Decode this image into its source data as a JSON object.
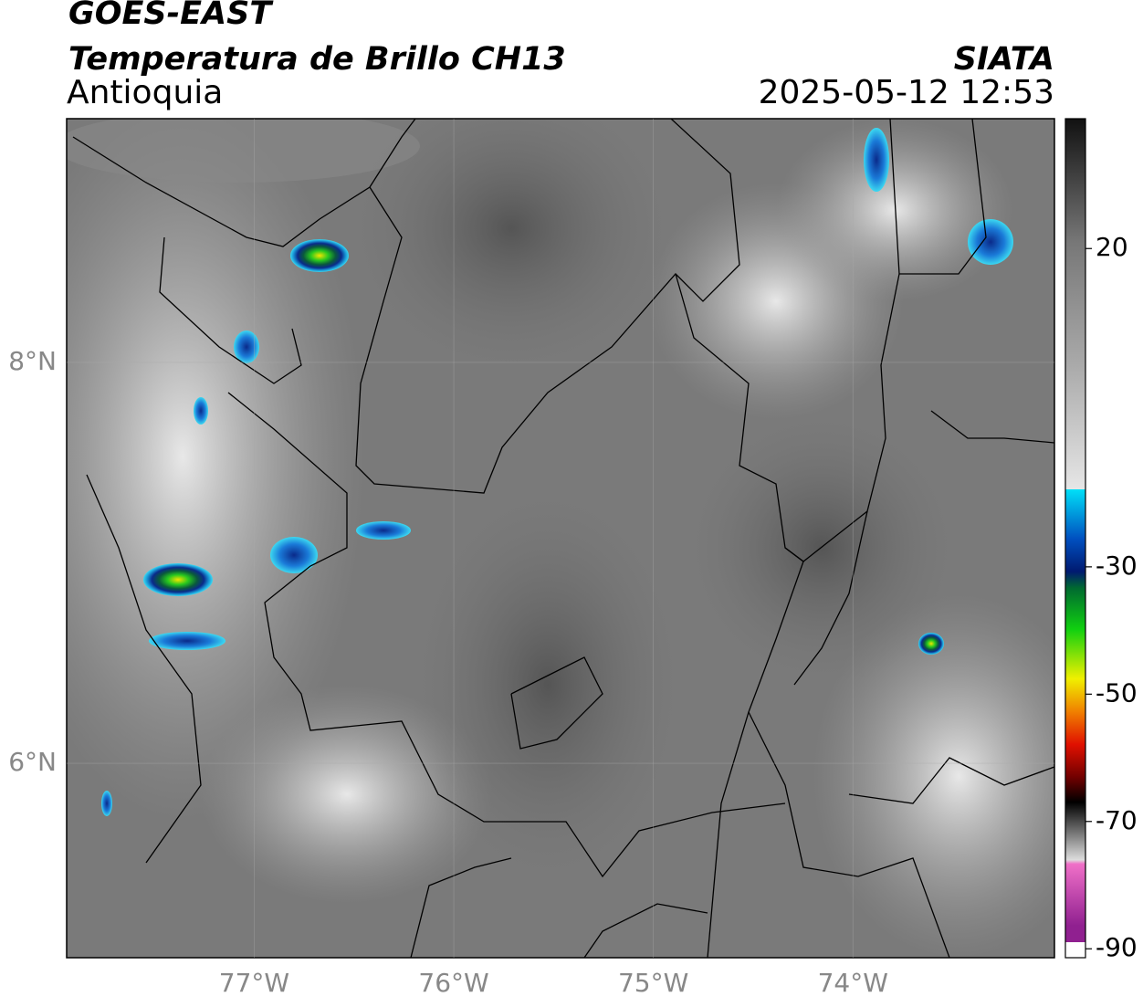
{
  "header": {
    "title": "GOES-EAST",
    "subtitle": "Temperatura de Brillo CH13",
    "region": "Antioquia",
    "source": "SIATA",
    "timestamp": "2025-05-12 12:53"
  },
  "map": {
    "latlim": [
      5.03,
      9.216
    ],
    "lonlim": [
      -77.94,
      -72.99
    ],
    "lat_ticks": [
      {
        "value": 8,
        "label": "8°N"
      },
      {
        "value": 6,
        "label": "6°N"
      }
    ],
    "lon_ticks": [
      {
        "value": -77,
        "label": "77°W"
      },
      {
        "value": -76,
        "label": "76°W"
      },
      {
        "value": -75,
        "label": "75°W"
      },
      {
        "value": -74,
        "label": "74°W"
      }
    ]
  },
  "colorbar": {
    "lim": [
      40.4,
      -91.4
    ],
    "ticks": [
      20,
      -30,
      -50,
      -70,
      -90
    ]
  }
}
